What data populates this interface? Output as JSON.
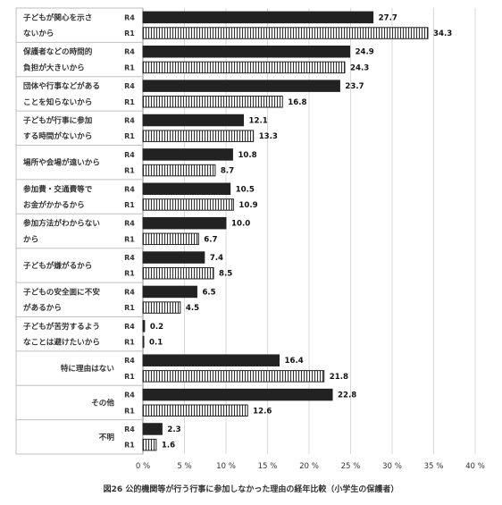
{
  "chart_data": {
    "type": "bar",
    "orientation": "horizontal",
    "title": "図26 公的機関等が行う行事に参加しなかった理由の経年比較（小学生の保護者）",
    "series_names": [
      "R4",
      "R1"
    ],
    "categories": [
      [
        "子どもが関心を示さ",
        "ないから"
      ],
      [
        "保護者などの時間的",
        "負担が大きいから"
      ],
      [
        "団体や行事などがある",
        "ことを知らないから"
      ],
      [
        "子どもが行事に参加",
        "する時間がないから"
      ],
      [
        "場所や会場が遠いから"
      ],
      [
        "参加費・交通費等で",
        "お金がかかるから"
      ],
      [
        "参加方法がわからない",
        "から"
      ],
      [
        "子どもが嫌がるから"
      ],
      [
        "子どもの安全面に不安",
        "があるから"
      ],
      [
        "子どもが苦労するよう",
        "なことは避けたいから"
      ],
      [
        "特に理由はない"
      ],
      [
        "その他"
      ],
      [
        "不明"
      ]
    ],
    "series": [
      {
        "name": "R4",
        "color": "#222222",
        "pattern": "solid",
        "values": [
          27.7,
          24.9,
          23.7,
          12.1,
          10.8,
          10.5,
          10.0,
          7.4,
          6.5,
          0.2,
          16.4,
          22.8,
          2.3
        ]
      },
      {
        "name": "R1",
        "color": "#ffffff",
        "pattern": "vertical-stripes",
        "values": [
          34.3,
          24.3,
          16.8,
          13.3,
          8.7,
          10.9,
          6.7,
          8.5,
          4.5,
          0.1,
          21.8,
          12.6,
          1.6
        ]
      }
    ],
    "value_labels": {
      "R4": [
        "27.7",
        "24.9",
        "23.7",
        "12.1",
        "10.8",
        "10.5",
        "10.0",
        "7.4",
        "6.5",
        "0.2",
        "16.4",
        "22.8",
        "2.3"
      ],
      "R1": [
        "34.3",
        "24.3",
        "16.8",
        "13.3",
        "8.7",
        "10.9",
        "6.7",
        "8.5",
        "4.5",
        "0.1",
        "21.8",
        "12.6",
        "1.6"
      ]
    },
    "xlim": [
      0,
      40
    ],
    "x_ticks": [
      0,
      5,
      10,
      15,
      20,
      25,
      30,
      35,
      40
    ],
    "x_tick_labels": [
      "0 %",
      "5 %",
      "10 %",
      "15 %",
      "20 %",
      "25 %",
      "30 %",
      "35 %",
      "40 %"
    ],
    "grid": "vertical",
    "legend": "none"
  }
}
